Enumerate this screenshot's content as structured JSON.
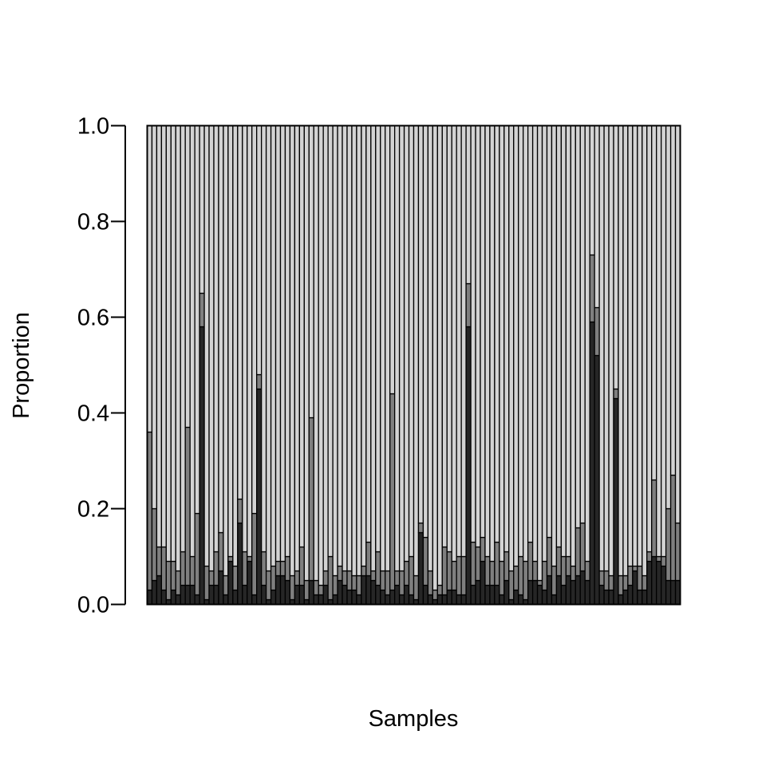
{
  "chart_data": {
    "type": "bar",
    "stacked": true,
    "title": "",
    "xlabel": "Samples",
    "ylabel": "Proportion",
    "ylim": [
      0,
      1
    ],
    "yticks": [
      "0.0",
      "0.2",
      "0.4",
      "0.6",
      "0.8",
      "1.0"
    ],
    "grid": false,
    "legend": "none",
    "colors": [
      "#262626",
      "#7f7f7f",
      "#d3d3d3"
    ],
    "series": [
      {
        "values": [
          0.03,
          0.05,
          0.06,
          0.03,
          0.01,
          0.03,
          0.02,
          0.04,
          0.04,
          0.04,
          0.02,
          0.58,
          0.01,
          0.04,
          0.04,
          0.07,
          0.02,
          0.09,
          0.03,
          0.17,
          0.04,
          0.09,
          0.02,
          0.45,
          0.04,
          0.01,
          0.03,
          0.06,
          0.06,
          0.05,
          0.01,
          0.04,
          0.04,
          0.01,
          0.05,
          0.02,
          0.02,
          0.04,
          0.01,
          0.02,
          0.05,
          0.04,
          0.03,
          0.03,
          0.02,
          0.06,
          0.06,
          0.05,
          0.04,
          0.03,
          0.02,
          0.03,
          0.04,
          0.02,
          0.04,
          0.02,
          0.01,
          0.15,
          0.04,
          0.02,
          0.01,
          0.02,
          0.02,
          0.03,
          0.03,
          0.02,
          0.02,
          0.58,
          0.04,
          0.05,
          0.09,
          0.04,
          0.04,
          0.04,
          0.02,
          0.05,
          0.01,
          0.03,
          0.02,
          0.01,
          0.05,
          0.05,
          0.04,
          0.03,
          0.06,
          0.02,
          0.06,
          0.04,
          0.06,
          0.05,
          0.06,
          0.07,
          0.05,
          0.59,
          0.52,
          0.04,
          0.03,
          0.03,
          0.43,
          0.02,
          0.03,
          0.04,
          0.07,
          0.03,
          0.03,
          0.09,
          0.1,
          0.09,
          0.08,
          0.05,
          0.05,
          0.05
        ]
      },
      {
        "values": [
          0.33,
          0.15,
          0.06,
          0.09,
          0.08,
          0.06,
          0.05,
          0.07,
          0.33,
          0.06,
          0.17,
          0.07,
          0.07,
          0.03,
          0.07,
          0.08,
          0.04,
          0.01,
          0.05,
          0.05,
          0.07,
          0.01,
          0.17,
          0.03,
          0.07,
          0.06,
          0.05,
          0.03,
          0.03,
          0.05,
          0.05,
          0.03,
          0.08,
          0.04,
          0.34,
          0.03,
          0.02,
          0.03,
          0.09,
          0.04,
          0.03,
          0.03,
          0.04,
          0.03,
          0.04,
          0.02,
          0.07,
          0.02,
          0.07,
          0.04,
          0.05,
          0.41,
          0.03,
          0.05,
          0.05,
          0.08,
          0.05,
          0.02,
          0.1,
          0.05,
          0.02,
          0.02,
          0.1,
          0.08,
          0.06,
          0.08,
          0.08,
          0.09,
          0.09,
          0.07,
          0.05,
          0.06,
          0.05,
          0.09,
          0.07,
          0.06,
          0.06,
          0.05,
          0.08,
          0.08,
          0.08,
          0.04,
          0.01,
          0.06,
          0.08,
          0.06,
          0.06,
          0.06,
          0.04,
          0.03,
          0.1,
          0.1,
          0.04,
          0.14,
          0.1,
          0.03,
          0.04,
          0.03,
          0.02,
          0.04,
          0.03,
          0.04,
          0.01,
          0.05,
          0.03,
          0.02,
          0.16,
          0.01,
          0.02,
          0.15,
          0.22,
          0.12
        ]
      },
      {
        "values": [
          0.64,
          0.8,
          0.88,
          0.88,
          0.91,
          0.91,
          0.93,
          0.89,
          0.63,
          0.9,
          0.81,
          0.35,
          0.92,
          0.93,
          0.89,
          0.85,
          0.94,
          0.9,
          0.92,
          0.78,
          0.89,
          0.9,
          0.81,
          0.52,
          0.89,
          0.93,
          0.92,
          0.91,
          0.91,
          0.9,
          0.94,
          0.93,
          0.88,
          0.95,
          0.61,
          0.95,
          0.96,
          0.93,
          0.9,
          0.94,
          0.92,
          0.93,
          0.93,
          0.94,
          0.94,
          0.92,
          0.87,
          0.93,
          0.89,
          0.93,
          0.93,
          0.56,
          0.93,
          0.93,
          0.91,
          0.9,
          0.94,
          0.83,
          0.86,
          0.93,
          0.97,
          0.96,
          0.88,
          0.89,
          0.91,
          0.9,
          0.9,
          0.33,
          0.87,
          0.88,
          0.86,
          0.9,
          0.91,
          0.87,
          0.91,
          0.89,
          0.93,
          0.92,
          0.9,
          0.91,
          0.87,
          0.91,
          0.95,
          0.91,
          0.86,
          0.92,
          0.88,
          0.9,
          0.9,
          0.92,
          0.84,
          0.83,
          0.91,
          0.27,
          0.38,
          0.93,
          0.93,
          0.94,
          0.55,
          0.94,
          0.94,
          0.92,
          0.92,
          0.92,
          0.94,
          0.89,
          0.74,
          0.9,
          0.9,
          0.8,
          0.73,
          0.83
        ]
      }
    ]
  }
}
